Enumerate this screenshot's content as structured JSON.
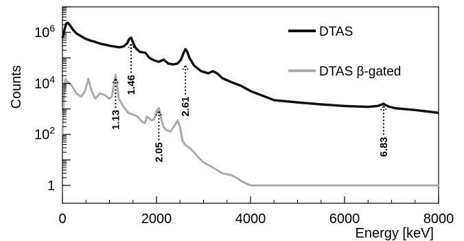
{
  "chart_data": {
    "type": "line",
    "title": "",
    "xlabel": "Energy [keV]",
    "ylabel": "Counts",
    "xlim": [
      0,
      8000
    ],
    "ylim": [
      0.2,
      10000000
    ],
    "yscale": "log",
    "grid": false,
    "legend_position": "top-right",
    "x_ticks": [
      {
        "value": 0,
        "label": "0"
      },
      {
        "value": 2000,
        "label": "2000"
      },
      {
        "value": 4000,
        "label": "4000"
      },
      {
        "value": 6000,
        "label": "6000"
      },
      {
        "value": 8000,
        "label": "8000"
      }
    ],
    "y_ticks": [
      {
        "value": 1,
        "label": "1"
      },
      {
        "value": 100,
        "label": "10",
        "exp": "2"
      },
      {
        "value": 10000,
        "label": "10",
        "exp": "4"
      },
      {
        "value": 1000000,
        "label": "10",
        "exp": "6"
      }
    ],
    "series": [
      {
        "name": "DTAS",
        "color": "#111111",
        "x": [
          0,
          40,
          80,
          110,
          150,
          220,
          300,
          400,
          500,
          600,
          700,
          800,
          900,
          1000,
          1100,
          1200,
          1300,
          1380,
          1420,
          1460,
          1500,
          1550,
          1650,
          1760,
          1850,
          1950,
          2050,
          2150,
          2250,
          2350,
          2450,
          2520,
          2580,
          2615,
          2650,
          2700,
          2800,
          2950,
          3100,
          3200,
          3300,
          3400,
          3600,
          3800,
          4000,
          4500,
          5000,
          5500,
          6000,
          6500,
          6700,
          6800,
          6830,
          6860,
          6950,
          7100,
          7500,
          8000
        ],
        "y": [
          600000,
          1200000,
          2200000,
          2400000,
          2000000,
          1300000,
          900000,
          700000,
          550000,
          470000,
          420000,
          360000,
          330000,
          300000,
          280000,
          260000,
          280000,
          380000,
          550000,
          620000,
          400000,
          250000,
          170000,
          160000,
          100000,
          80000,
          70000,
          85000,
          60000,
          55000,
          60000,
          85000,
          160000,
          220000,
          180000,
          100000,
          50000,
          30000,
          25000,
          30000,
          24000,
          16000,
          11000,
          8000,
          5000,
          2200,
          1800,
          1500,
          1300,
          1200,
          1300,
          1500,
          1600,
          1450,
          1200,
          1050,
          900,
          700
        ]
      },
      {
        "name": "DTAS β-gated",
        "color": "#aaaaaa",
        "x": [
          0,
          30,
          60,
          100,
          200,
          300,
          400,
          480,
          550,
          620,
          700,
          800,
          900,
          1000,
          1050,
          1100,
          1130,
          1160,
          1200,
          1300,
          1400,
          1500,
          1600,
          1700,
          1750,
          1800,
          1900,
          1950,
          2000,
          2050,
          2100,
          2150,
          2200,
          2300,
          2400,
          2450,
          2500,
          2550,
          2600,
          2700,
          2800,
          2900,
          3000,
          3200,
          3400,
          3600,
          3700,
          3800,
          3900,
          4000,
          4100,
          4200,
          4500,
          5000,
          5500,
          6000,
          6500,
          7000,
          7500,
          8000
        ],
        "y": [
          100,
          3000,
          15000,
          12000,
          8000,
          4000,
          3000,
          5000,
          15000,
          5000,
          2500,
          4000,
          3500,
          2500,
          3000,
          10000,
          22000,
          9000,
          2500,
          1200,
          700,
          600,
          500,
          300,
          280,
          500,
          350,
          400,
          800,
          1100,
          400,
          200,
          150,
          130,
          250,
          350,
          200,
          60,
          40,
          30,
          20,
          12,
          8,
          5,
          3,
          2.5,
          2,
          1.5,
          1.2,
          1,
          1,
          1,
          1,
          1,
          1,
          1,
          1,
          1,
          1,
          1
        ]
      }
    ],
    "annotations": [
      {
        "label": "1.13",
        "x": 1130,
        "peak_y": 15000,
        "side": "below"
      },
      {
        "label": "1.46",
        "x": 1460,
        "peak_y": 350000,
        "side": "below"
      },
      {
        "label": "2.05",
        "x": 2050,
        "peak_y": 800,
        "side": "below"
      },
      {
        "label": "2.61",
        "x": 2615,
        "peak_y": 50000,
        "side": "below"
      },
      {
        "label": "6.83",
        "x": 6830,
        "peak_y": 1300,
        "side": "below"
      }
    ]
  }
}
